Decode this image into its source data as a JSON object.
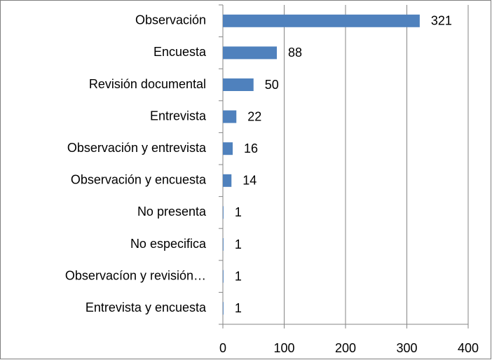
{
  "chart_data": {
    "type": "bar",
    "orientation": "horizontal",
    "categories": [
      "Observación",
      "Encuesta",
      "Revisión documental",
      "Entrevista",
      "Observación y entrevista",
      "Observación y encuesta",
      "No presenta",
      "No especifica",
      "Observacíon y revisión…",
      "Entrevista y encuesta"
    ],
    "values": [
      321,
      88,
      50,
      22,
      16,
      14,
      1,
      1,
      1,
      1
    ],
    "color": "#4f81bd",
    "xlim": [
      0,
      400
    ],
    "xticks": [
      0,
      100,
      200,
      300,
      400
    ],
    "grid": true
  }
}
